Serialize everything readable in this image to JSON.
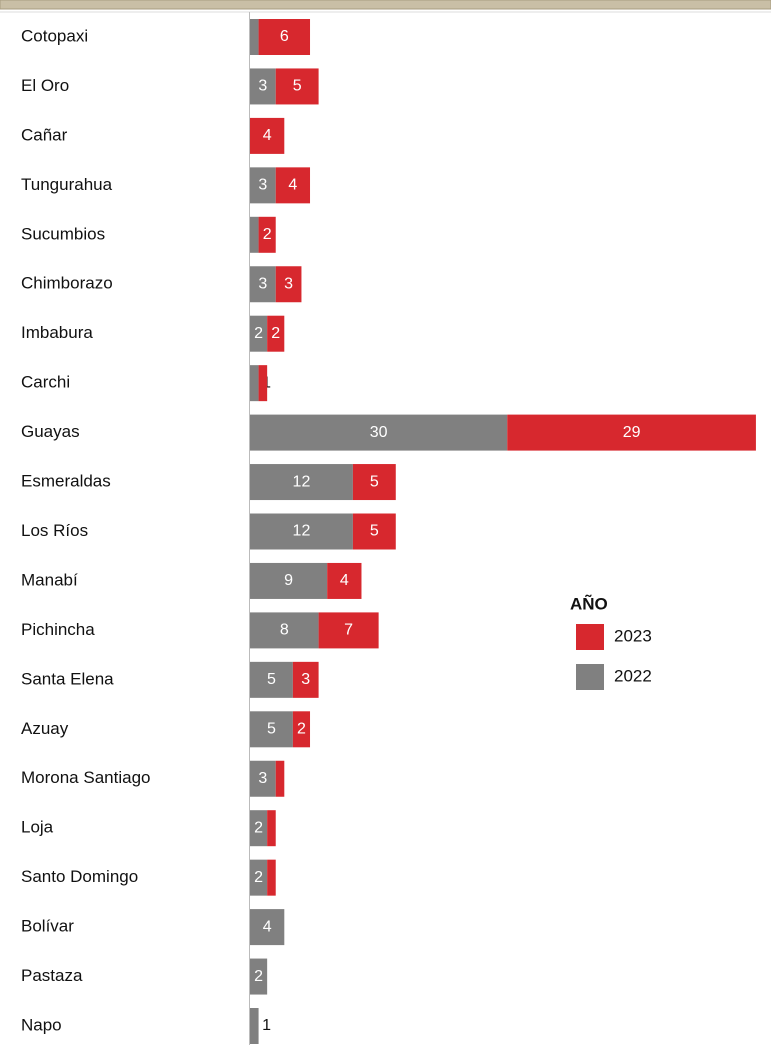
{
  "chart_data": {
    "type": "bar",
    "orientation": "horizontal",
    "stacked": true,
    "categories": [
      "Cotopaxi",
      "El Oro",
      "Cañar",
      "Tungurahua",
      "Sucumbios",
      "Chimborazo",
      "Imbabura",
      "Carchi",
      "Guayas",
      "Esmeraldas",
      "Los Ríos",
      "Manabí",
      "Pichincha",
      "Santa Elena",
      "Azuay",
      "Morona Santiago",
      "Loja",
      "Santo Domingo",
      "Bolívar",
      "Pastaza",
      "Napo"
    ],
    "legend_title": "AÑO",
    "series": [
      {
        "name": "2022",
        "color": "#808080",
        "values": [
          1,
          3,
          0,
          3,
          1,
          3,
          2,
          1,
          30,
          12,
          12,
          9,
          8,
          5,
          5,
          3,
          2,
          2,
          4,
          2,
          1
        ],
        "value_labels": [
          null,
          "3",
          null,
          "3",
          null,
          "3",
          "2",
          "1",
          "30",
          "12",
          "12",
          "9",
          "8",
          "5",
          "5",
          "3",
          "2",
          "2",
          "4",
          "2",
          "1"
        ]
      },
      {
        "name": "2023",
        "color": "#d7282e",
        "values": [
          6,
          5,
          4,
          4,
          2,
          3,
          2,
          1,
          29,
          5,
          5,
          4,
          7,
          3,
          2,
          1,
          1,
          1,
          0,
          0,
          0
        ],
        "value_labels": [
          "6",
          "5",
          "4",
          "4",
          "2",
          "3",
          "2",
          null,
          "29",
          "5",
          "5",
          "4",
          "7",
          "3",
          "2",
          null,
          null,
          null,
          null,
          null,
          null
        ]
      }
    ]
  }
}
